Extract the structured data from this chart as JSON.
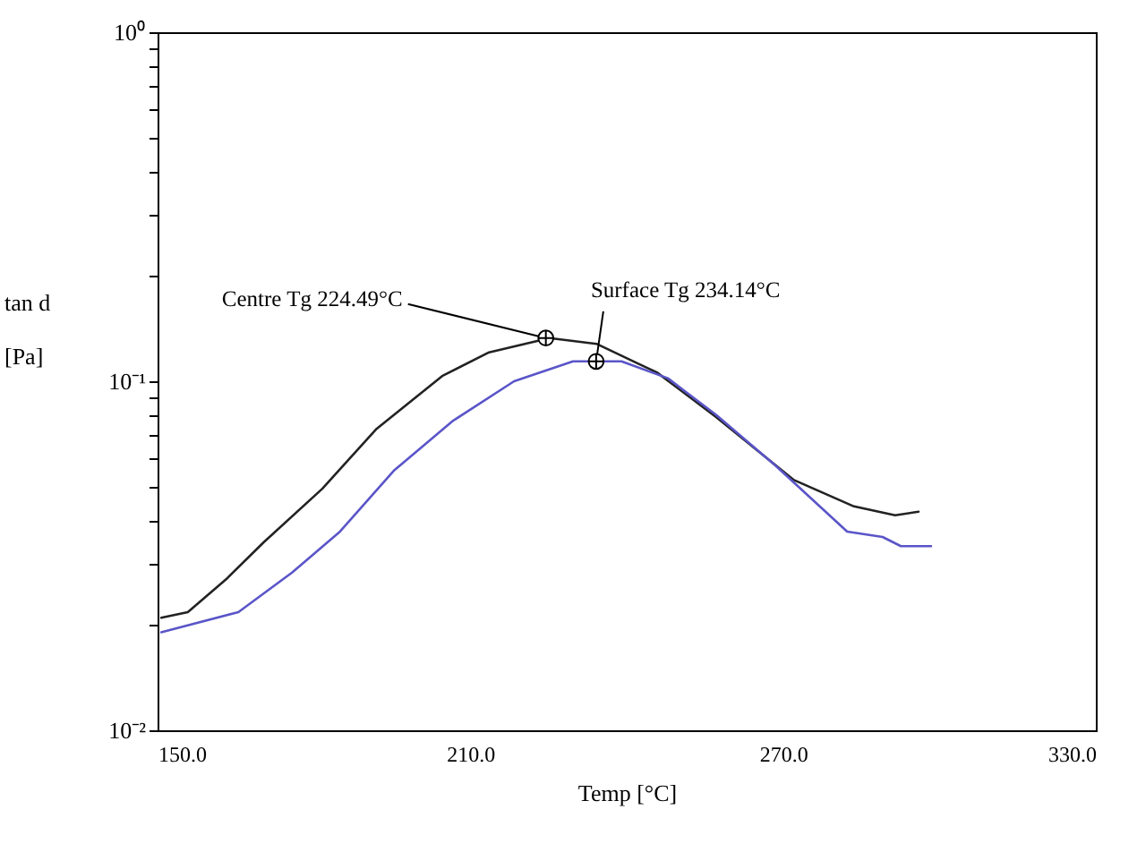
{
  "chart_data": {
    "type": "line",
    "xlabel": "Temp [°C]",
    "ylabel": "tan d\n[Pa]",
    "log": "y",
    "grid": false,
    "marker": "none",
    "line_style": "solid",
    "xlim": [
      150,
      330
    ],
    "xticks": [
      {
        "value": 150,
        "label": "150.0"
      },
      {
        "value": 210,
        "label": "210.0"
      },
      {
        "value": 270,
        "label": "270.0"
      },
      {
        "value": 330,
        "label": "330.0"
      }
    ],
    "ylim": [
      0.01,
      1
    ],
    "yticks": [
      {
        "value": 0.01,
        "label": "10⁻²"
      },
      {
        "value": 0.02,
        "label": null
      },
      {
        "value": 0.03,
        "label": null
      },
      {
        "value": 0.04,
        "label": null
      },
      {
        "value": 0.05,
        "label": null
      },
      {
        "value": 0.06,
        "label": null
      },
      {
        "value": 0.07,
        "label": null
      },
      {
        "value": 0.08,
        "label": null
      },
      {
        "value": 0.09,
        "label": null
      },
      {
        "value": 0.1,
        "label": "10⁻¹"
      },
      {
        "value": 0.2,
        "label": null
      },
      {
        "value": 0.3,
        "label": null
      },
      {
        "value": 0.4,
        "label": null
      },
      {
        "value": 0.5,
        "label": null
      },
      {
        "value": 0.6,
        "label": null
      },
      {
        "value": 0.7,
        "label": null
      },
      {
        "value": 0.8,
        "label": null
      },
      {
        "value": 0.9,
        "label": null
      },
      {
        "value": 1,
        "label": "10⁰"
      }
    ],
    "series": [
      {
        "color": "#222222",
        "x": [
          150.7,
          155.8,
          163.4,
          170.3,
          181.6,
          191.9,
          204.6,
          213.6,
          225.2,
          234.2,
          242.4,
          245.8,
          257.2,
          272,
          283.6,
          291.5,
          296
        ],
        "values": [
          0.021,
          0.0218,
          0.0273,
          0.0345,
          0.0492,
          0.0728,
          0.1035,
          0.121,
          0.133,
          0.128,
          0.112,
          0.106,
          0.0789,
          0.0522,
          0.0438,
          0.0413,
          0.0423
        ]
      },
      {
        "color": "#5a55c8",
        "x": [
          150.7,
          165.5,
          175.8,
          185,
          195.3,
          206.7,
          218.4,
          229.7,
          239,
          247.9,
          257.2,
          268.5,
          282.3,
          289.1,
          292.6,
          298.4
        ],
        "values": [
          0.0191,
          0.0218,
          0.0283,
          0.0371,
          0.0554,
          0.0771,
          0.1,
          0.114,
          0.114,
          0.102,
          0.08,
          0.0574,
          0.0371,
          0.0358,
          0.0337,
          0.0337
        ]
      }
    ],
    "annotations": [
      {
        "text": "Centre Tg  224.49°C",
        "x": 224.49,
        "y": 0.133
      },
      {
        "text": "Surface Tg  234.14°C",
        "x": 234.14,
        "y": 0.114
      }
    ]
  }
}
